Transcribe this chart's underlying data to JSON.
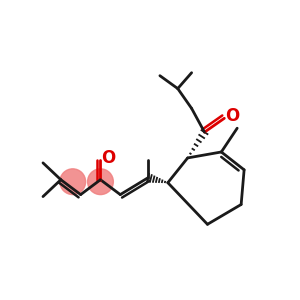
{
  "background_color": "#ffffff",
  "line_color": "#1a1a1a",
  "highlight_color": "#f08080",
  "oxygen_color": "#dd0000",
  "line_width": 2.0,
  "fig_width": 3.0,
  "fig_height": 3.0,
  "dpi": 100
}
